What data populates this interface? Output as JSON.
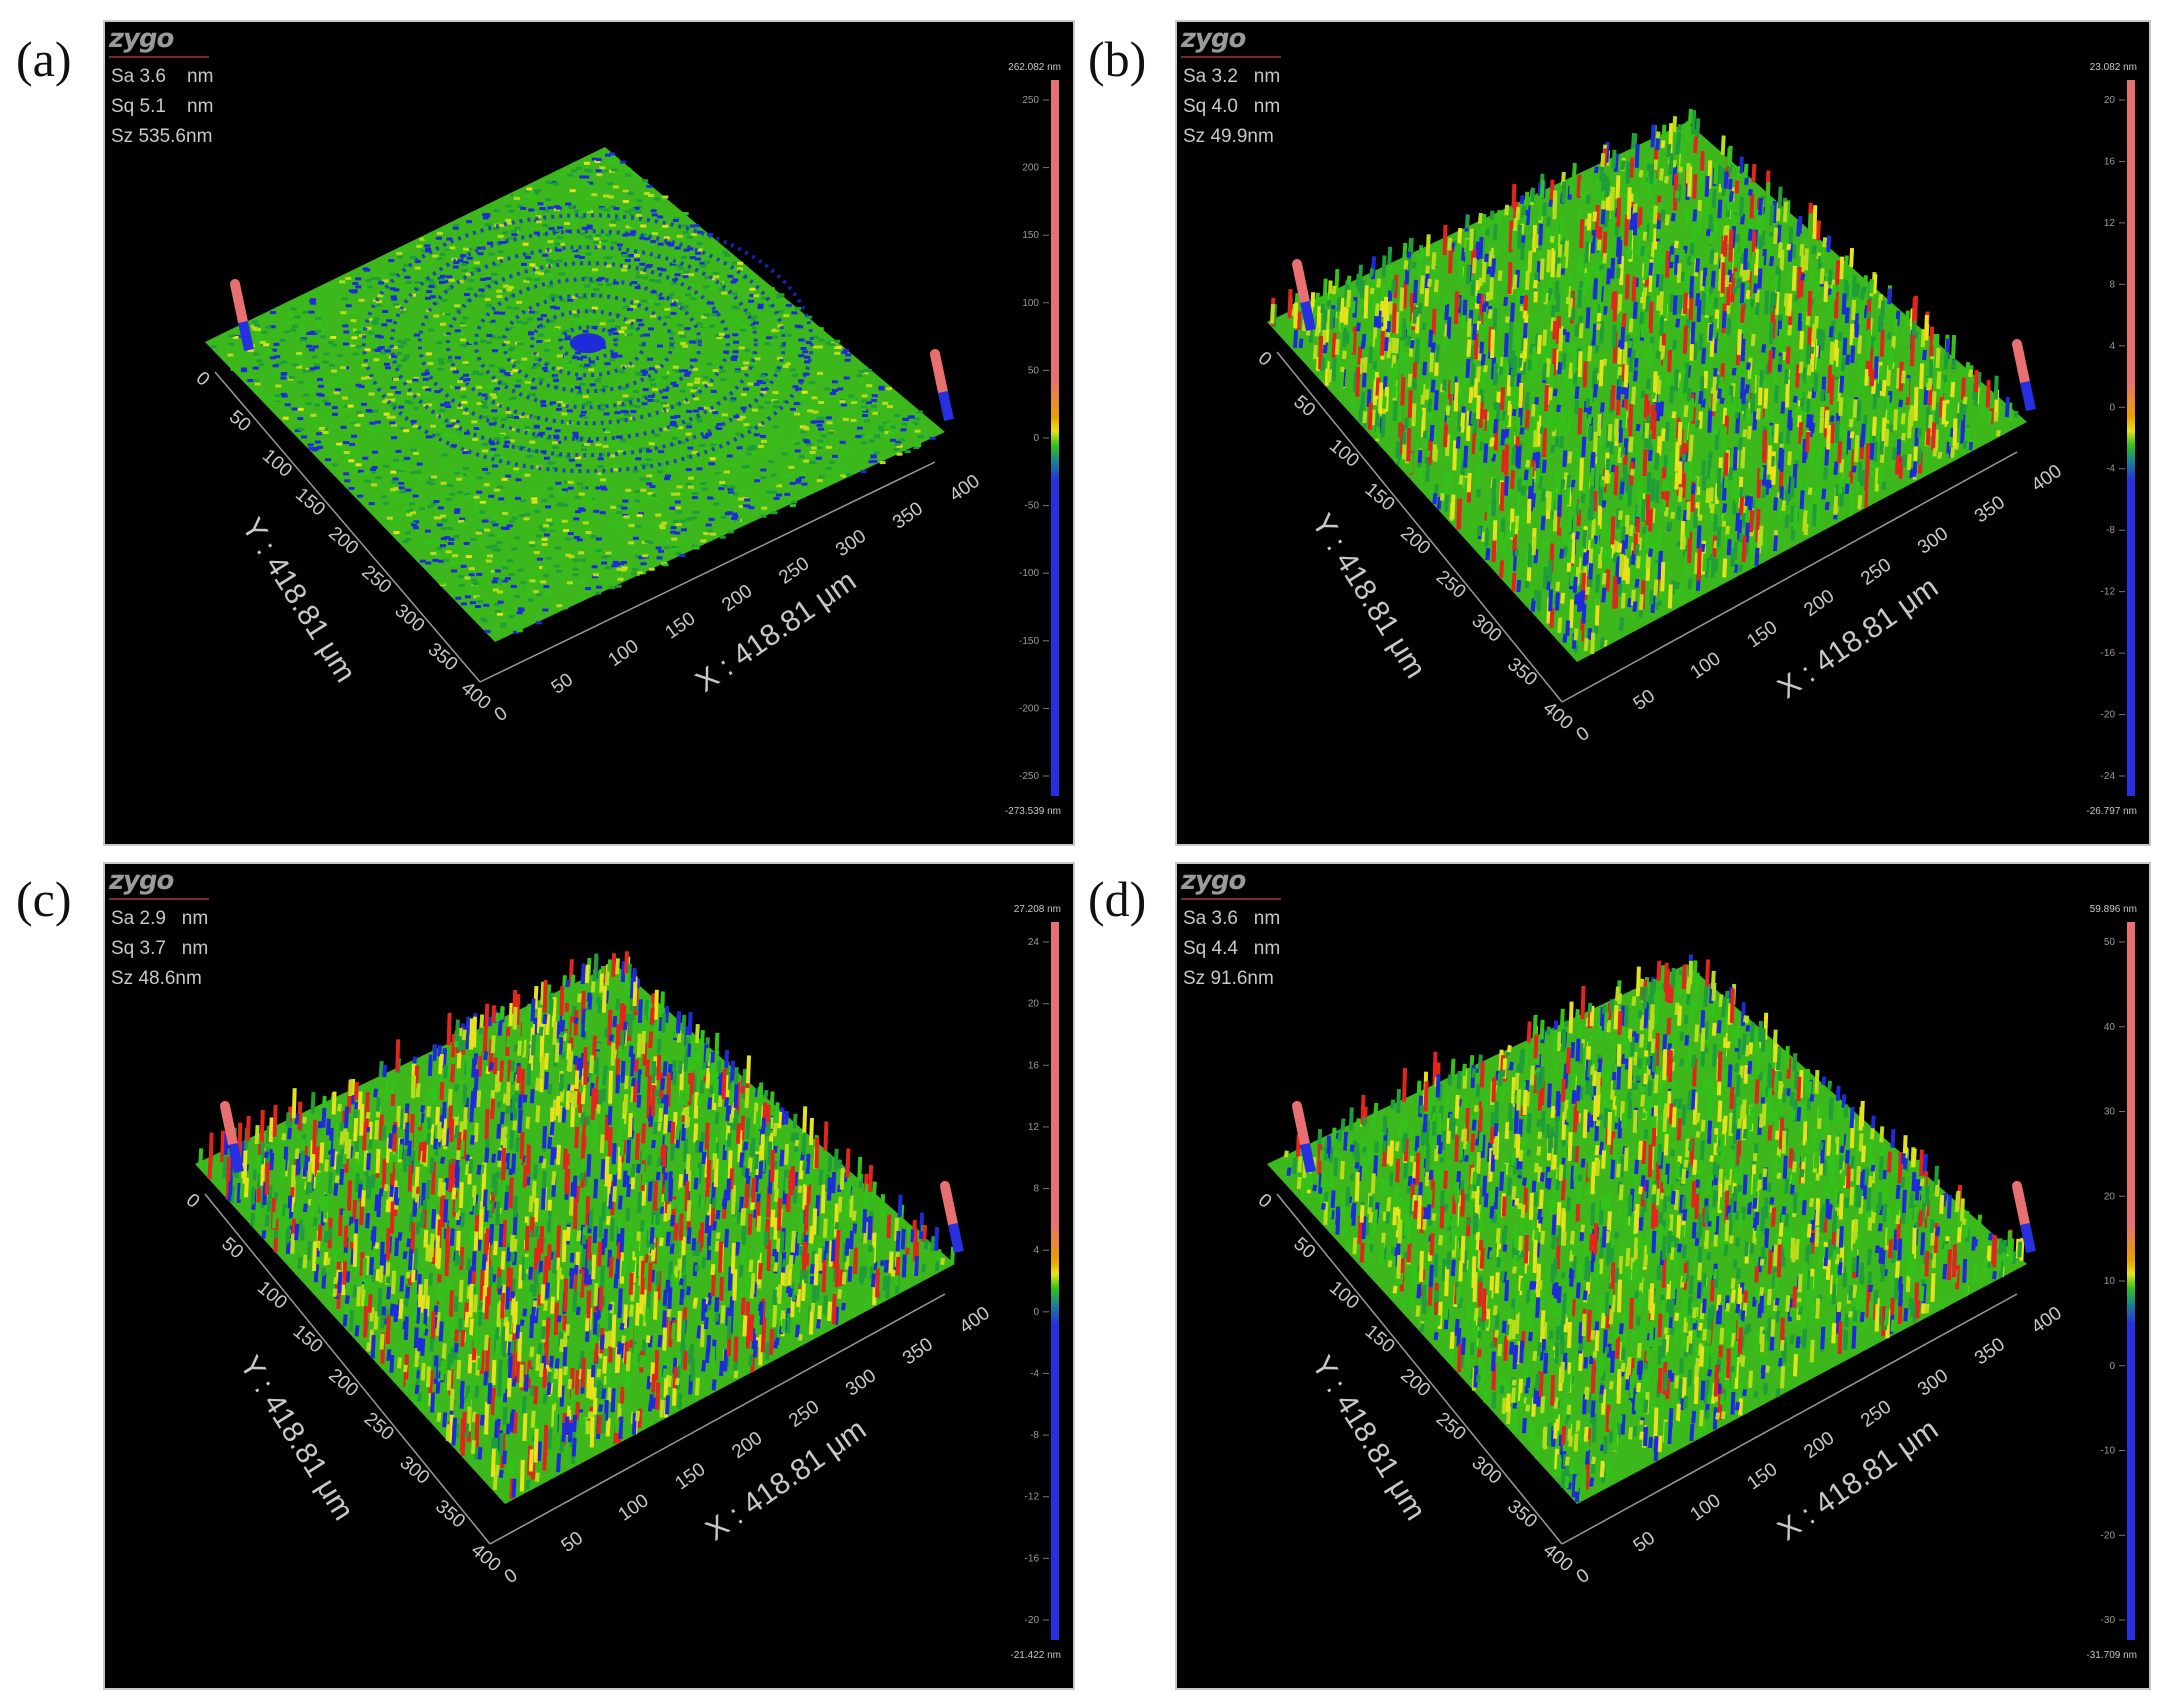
{
  "panels": [
    {
      "label": "(a)",
      "logo": "zygo",
      "stats": [
        "Sa 3.6    nm",
        "Sq 5.1    nm",
        "Sz 535.6nm"
      ],
      "scale": {
        "top": "262.082 nm",
        "bottom": "-273.539 nm",
        "ticks": [
          "250",
          "200",
          "150",
          "100",
          "50",
          "0",
          "-50",
          "-100",
          "-150",
          "-200",
          "-250"
        ]
      },
      "x_axis_title": "X : 418.81 μm",
      "y_axis_title": "Y : 418.81 μm",
      "x_ticks": [
        "0",
        "50",
        "100",
        "150",
        "200",
        "250",
        "300",
        "350",
        "400"
      ],
      "y_ticks": [
        "0",
        "50",
        "100",
        "150",
        "200",
        "250",
        "300",
        "350",
        "400"
      ],
      "surface": "concentric"
    },
    {
      "label": "(b)",
      "logo": "zygo",
      "stats": [
        "Sa 3.2   nm",
        "Sq 4.0   nm",
        "Sz 49.9nm"
      ],
      "scale": {
        "top": "23.082 nm",
        "bottom": "-26.797 nm",
        "ticks": [
          "20",
          "16",
          "12",
          "8",
          "4",
          "0",
          "-4",
          "-8",
          "-12",
          "-16",
          "-20",
          "-24"
        ]
      },
      "x_axis_title": "X : 418.81 μm",
      "y_axis_title": "Y : 418.81 μm",
      "x_ticks": [
        "0",
        "50",
        "100",
        "150",
        "200",
        "250",
        "300",
        "350",
        "400"
      ],
      "y_ticks": [
        "0",
        "50",
        "100",
        "150",
        "200",
        "250",
        "300",
        "350",
        "400"
      ],
      "surface": "rough-striated"
    },
    {
      "label": "(c)",
      "logo": "zygo",
      "stats": [
        "Sa 2.9   nm",
        "Sq 3.7   nm",
        "Sz 48.6nm"
      ],
      "scale": {
        "top": "27.208 nm",
        "bottom": "-21.422 nm",
        "ticks": [
          "24",
          "20",
          "16",
          "12",
          "8",
          "4",
          "0",
          "-4",
          "-8",
          "-12",
          "-16",
          "-20"
        ]
      },
      "x_axis_title": "X : 418.81 μm",
      "y_axis_title": "Y : 418.81 μm",
      "x_ticks": [
        "0",
        "50",
        "100",
        "150",
        "200",
        "250",
        "300",
        "350",
        "400"
      ],
      "y_ticks": [
        "0",
        "50",
        "100",
        "150",
        "200",
        "250",
        "300",
        "350",
        "400"
      ],
      "surface": "rough"
    },
    {
      "label": "(d)",
      "logo": "zygo",
      "stats": [
        "Sa 3.6   nm",
        "Sq 4.4   nm",
        "Sz 91.6nm"
      ],
      "scale": {
        "top": "59.896 nm",
        "bottom": "-31.709 nm",
        "ticks": [
          "50",
          "40",
          "30",
          "20",
          "10",
          "0",
          "-10",
          "-20",
          "-30"
        ]
      },
      "x_axis_title": "X : 418.81 μm",
      "y_axis_title": "Y : 418.81 μm",
      "x_ticks": [
        "0",
        "50",
        "100",
        "150",
        "200",
        "250",
        "300",
        "350",
        "400"
      ],
      "y_ticks": [
        "0",
        "50",
        "100",
        "150",
        "200",
        "250",
        "300",
        "350",
        "400"
      ],
      "surface": "striated"
    }
  ],
  "colors": {
    "background": "#000000",
    "surface_green": "#33c21a",
    "surface_yellow": "#e8e21c",
    "surface_red": "#e3261c",
    "surface_blue": "#1e2bd8",
    "scale_red": "#e87070",
    "scale_blue": "#2630e0",
    "axis_text": "#c8c8c8"
  }
}
